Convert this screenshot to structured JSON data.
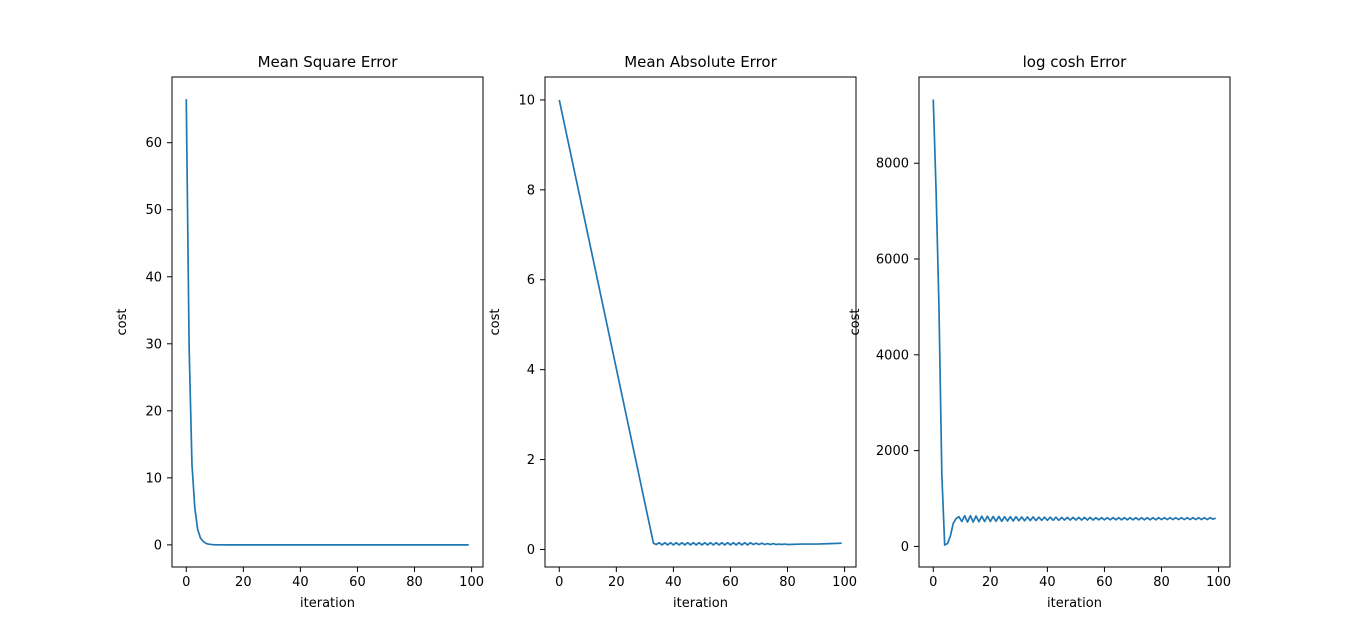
{
  "chart_data": [
    {
      "type": "line",
      "title": "Mean Square Error",
      "xlabel": "iteration",
      "ylabel": "cost",
      "xlim": [
        -5,
        104
      ],
      "ylim": [
        -3.3,
        69.8
      ],
      "xticks": [
        0,
        20,
        40,
        60,
        80,
        100
      ],
      "yticks": [
        0,
        10,
        20,
        30,
        40,
        50,
        60
      ],
      "line_color": "#1f77b4",
      "series": [
        {
          "name": "cost",
          "x": [
            0,
            1,
            2,
            3,
            4,
            5,
            6,
            7,
            8,
            9,
            10,
            12,
            15,
            20,
            30,
            40,
            60,
            80,
            99
          ],
          "y": [
            66.5,
            29.5,
            12.0,
            5.5,
            2.3,
            1.0,
            0.5,
            0.2,
            0.1,
            0.05,
            0.02,
            0.01,
            0,
            0,
            0,
            0,
            0,
            0,
            0
          ]
        }
      ]
    },
    {
      "type": "line",
      "title": "Mean Absolute Error",
      "xlabel": "iteration",
      "ylabel": "cost",
      "xlim": [
        -5,
        104
      ],
      "ylim": [
        -0.39,
        10.51
      ],
      "xticks": [
        0,
        20,
        40,
        60,
        80,
        100
      ],
      "yticks": [
        0,
        2,
        4,
        6,
        8,
        10
      ],
      "line_color": "#1f77b4",
      "series": [
        {
          "name": "cost",
          "x": [
            0,
            33,
            34,
            35,
            36,
            37,
            38,
            39,
            40,
            41,
            42,
            43,
            44,
            45,
            46,
            47,
            48,
            49,
            50,
            51,
            52,
            53,
            54,
            55,
            56,
            57,
            58,
            59,
            60,
            61,
            62,
            63,
            64,
            65,
            66,
            67,
            68,
            69,
            70,
            71,
            72,
            73,
            74,
            75,
            76,
            77,
            78,
            79,
            80,
            85,
            90,
            95,
            99
          ],
          "y": [
            10.0,
            0.14,
            0.11,
            0.15,
            0.1,
            0.15,
            0.1,
            0.15,
            0.1,
            0.15,
            0.1,
            0.15,
            0.1,
            0.15,
            0.1,
            0.15,
            0.1,
            0.15,
            0.1,
            0.15,
            0.1,
            0.15,
            0.1,
            0.15,
            0.1,
            0.15,
            0.1,
            0.15,
            0.1,
            0.15,
            0.1,
            0.15,
            0.1,
            0.15,
            0.1,
            0.15,
            0.11,
            0.14,
            0.11,
            0.14,
            0.11,
            0.13,
            0.11,
            0.13,
            0.11,
            0.12,
            0.11,
            0.12,
            0.11,
            0.12,
            0.12,
            0.13,
            0.14
          ]
        }
      ]
    },
    {
      "type": "line",
      "title": "log cosh Error",
      "xlabel": "iteration",
      "ylabel": "cost",
      "xlim": [
        -5,
        104
      ],
      "ylim": [
        -430,
        9800
      ],
      "xticks": [
        0,
        20,
        40,
        60,
        80,
        100
      ],
      "yticks": [
        0,
        2000,
        4000,
        6000,
        8000
      ],
      "line_color": "#1f77b4",
      "series": [
        {
          "name": "cost",
          "x": [
            0,
            1,
            2,
            3,
            4,
            5,
            6,
            7,
            8,
            9,
            10,
            11,
            12,
            13,
            14,
            15,
            16,
            17,
            18,
            19,
            20,
            21,
            22,
            23,
            24,
            25,
            26,
            27,
            28,
            29,
            30,
            31,
            32,
            33,
            34,
            35,
            36,
            37,
            38,
            39,
            40,
            41,
            42,
            43,
            44,
            45,
            46,
            47,
            48,
            49,
            50,
            51,
            52,
            53,
            54,
            55,
            56,
            57,
            58,
            59,
            60,
            61,
            62,
            63,
            64,
            65,
            66,
            67,
            68,
            69,
            70,
            71,
            72,
            73,
            74,
            75,
            76,
            77,
            78,
            79,
            80,
            81,
            82,
            83,
            84,
            85,
            86,
            87,
            88,
            89,
            90,
            91,
            92,
            93,
            94,
            95,
            96,
            97,
            98,
            99
          ],
          "y": [
            9330,
            7400,
            5000,
            1500,
            30,
            60,
            220,
            480,
            580,
            620,
            520,
            640,
            510,
            640,
            510,
            635,
            515,
            630,
            520,
            630,
            520,
            625,
            525,
            625,
            525,
            620,
            530,
            620,
            530,
            620,
            535,
            615,
            535,
            615,
            540,
            615,
            540,
            610,
            545,
            610,
            545,
            610,
            545,
            610,
            545,
            605,
            550,
            605,
            550,
            605,
            550,
            605,
            550,
            605,
            550,
            605,
            550,
            600,
            555,
            600,
            555,
            600,
            555,
            600,
            555,
            600,
            555,
            600,
            555,
            600,
            555,
            600,
            555,
            600,
            555,
            600,
            555,
            600,
            555,
            600,
            560,
            600,
            560,
            600,
            560,
            600,
            560,
            600,
            560,
            600,
            560,
            600,
            560,
            600,
            560,
            600,
            560,
            600,
            570,
            590
          ]
        }
      ]
    }
  ]
}
